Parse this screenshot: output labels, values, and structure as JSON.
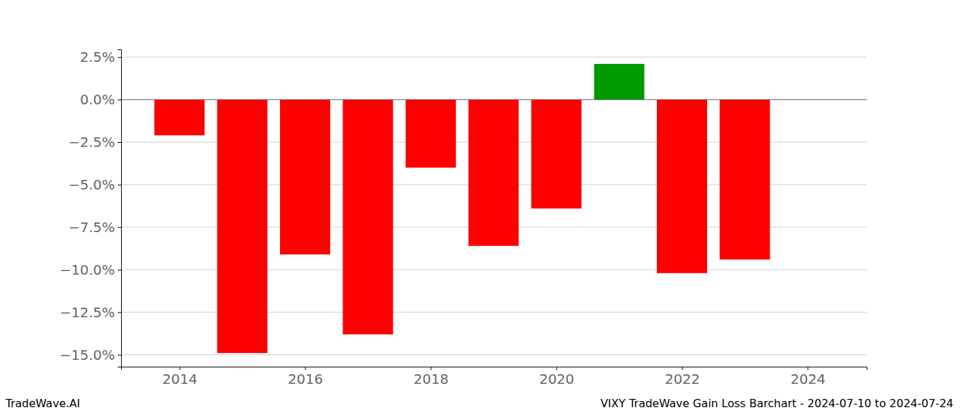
{
  "chart_data": {
    "type": "bar",
    "title": "VIXY TradeWave Gain Loss Barchart - 2024-07-10 to 2024-07-24",
    "annotations": [
      "TradeWave.AI"
    ],
    "x": [
      2014,
      2015,
      2016,
      2017,
      2018,
      2019,
      2020,
      2021,
      2022,
      2023
    ],
    "values": [
      -2.1,
      -14.9,
      -9.1,
      -13.8,
      -4.0,
      -8.6,
      -6.4,
      2.1,
      -10.2,
      -9.4
    ],
    "colors": [
      "#ff0000",
      "#ff0000",
      "#ff0000",
      "#ff0000",
      "#ff0000",
      "#ff0000",
      "#ff0000",
      "#009900",
      "#ff0000",
      "#ff0000"
    ],
    "xlim": [
      2013.07,
      2024.94
    ],
    "xticks": [
      2014,
      2016,
      2018,
      2020,
      2022,
      2024
    ],
    "ylim": [
      -15.7,
      2.95
    ],
    "yticks": [
      {
        "value": 2.5,
        "label": "2.5%"
      },
      {
        "value": 0,
        "label": "0.0%"
      },
      {
        "value": -2.5,
        "label": "−2.5%"
      },
      {
        "value": -5,
        "label": "−5.0%"
      },
      {
        "value": -7.5,
        "label": "−7.5%"
      },
      {
        "value": -10,
        "label": "−10.0%"
      },
      {
        "value": -12.5,
        "label": "−12.5%"
      },
      {
        "value": -15,
        "label": "−15.0%"
      }
    ],
    "grid": true
  }
}
